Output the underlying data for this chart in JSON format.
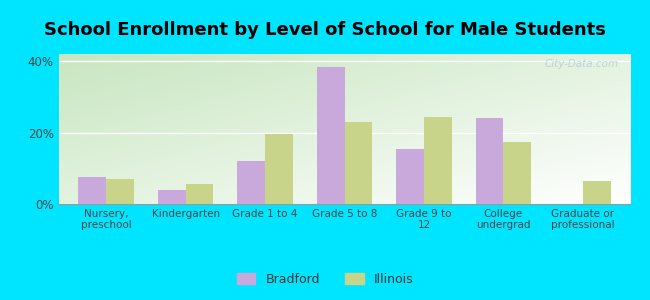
{
  "title": "School Enrollment by Level of School for Male Students",
  "categories": [
    "Nursery,\npreschool",
    "Kindergarten",
    "Grade 1 to 4",
    "Grade 5 to 8",
    "Grade 9 to\n12",
    "College\nundergrad",
    "Graduate or\nprofessional"
  ],
  "bradford": [
    7.5,
    4.0,
    12.0,
    38.5,
    15.5,
    24.0,
    0.0
  ],
  "illinois": [
    7.0,
    5.5,
    19.5,
    23.0,
    24.5,
    17.5,
    6.5
  ],
  "bradford_color": "#c9a8dc",
  "illinois_color": "#c8d48a",
  "background_outer": "#00e5ff",
  "background_plot_tl": "#c8e6c0",
  "background_plot_br": "#ffffff",
  "ylim": [
    0,
    42
  ],
  "yticks": [
    0,
    20,
    40
  ],
  "ytick_labels": [
    "0%",
    "20%",
    "40%"
  ],
  "watermark": "City-Data.com",
  "legend_labels": [
    "Bradford",
    "Illinois"
  ],
  "title_fontsize": 13,
  "bar_width": 0.35
}
